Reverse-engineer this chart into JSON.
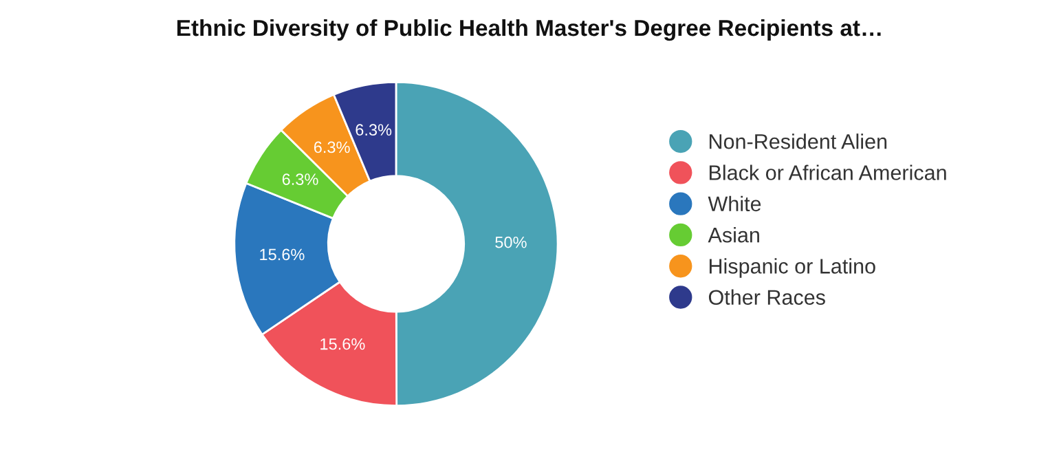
{
  "chart_data": {
    "type": "donut",
    "title": "Ethnic Diversity of Public Health Master's Degree Recipients at…",
    "categories": [
      "Non-Resident Alien",
      "Black or African American",
      "White",
      "Asian",
      "Hispanic or Latino",
      "Other Races"
    ],
    "values": [
      50,
      15.6,
      15.6,
      6.3,
      6.3,
      6.3
    ],
    "colors": [
      "#4aa3b5",
      "#f0525a",
      "#2a77bd",
      "#66cc33",
      "#f7941d",
      "#2e3a8c"
    ],
    "value_labels": [
      "50%",
      "15.6%",
      "15.6%",
      "6.3%",
      "6.3%",
      "6.3%"
    ],
    "legend": "right",
    "marker": "circle"
  }
}
